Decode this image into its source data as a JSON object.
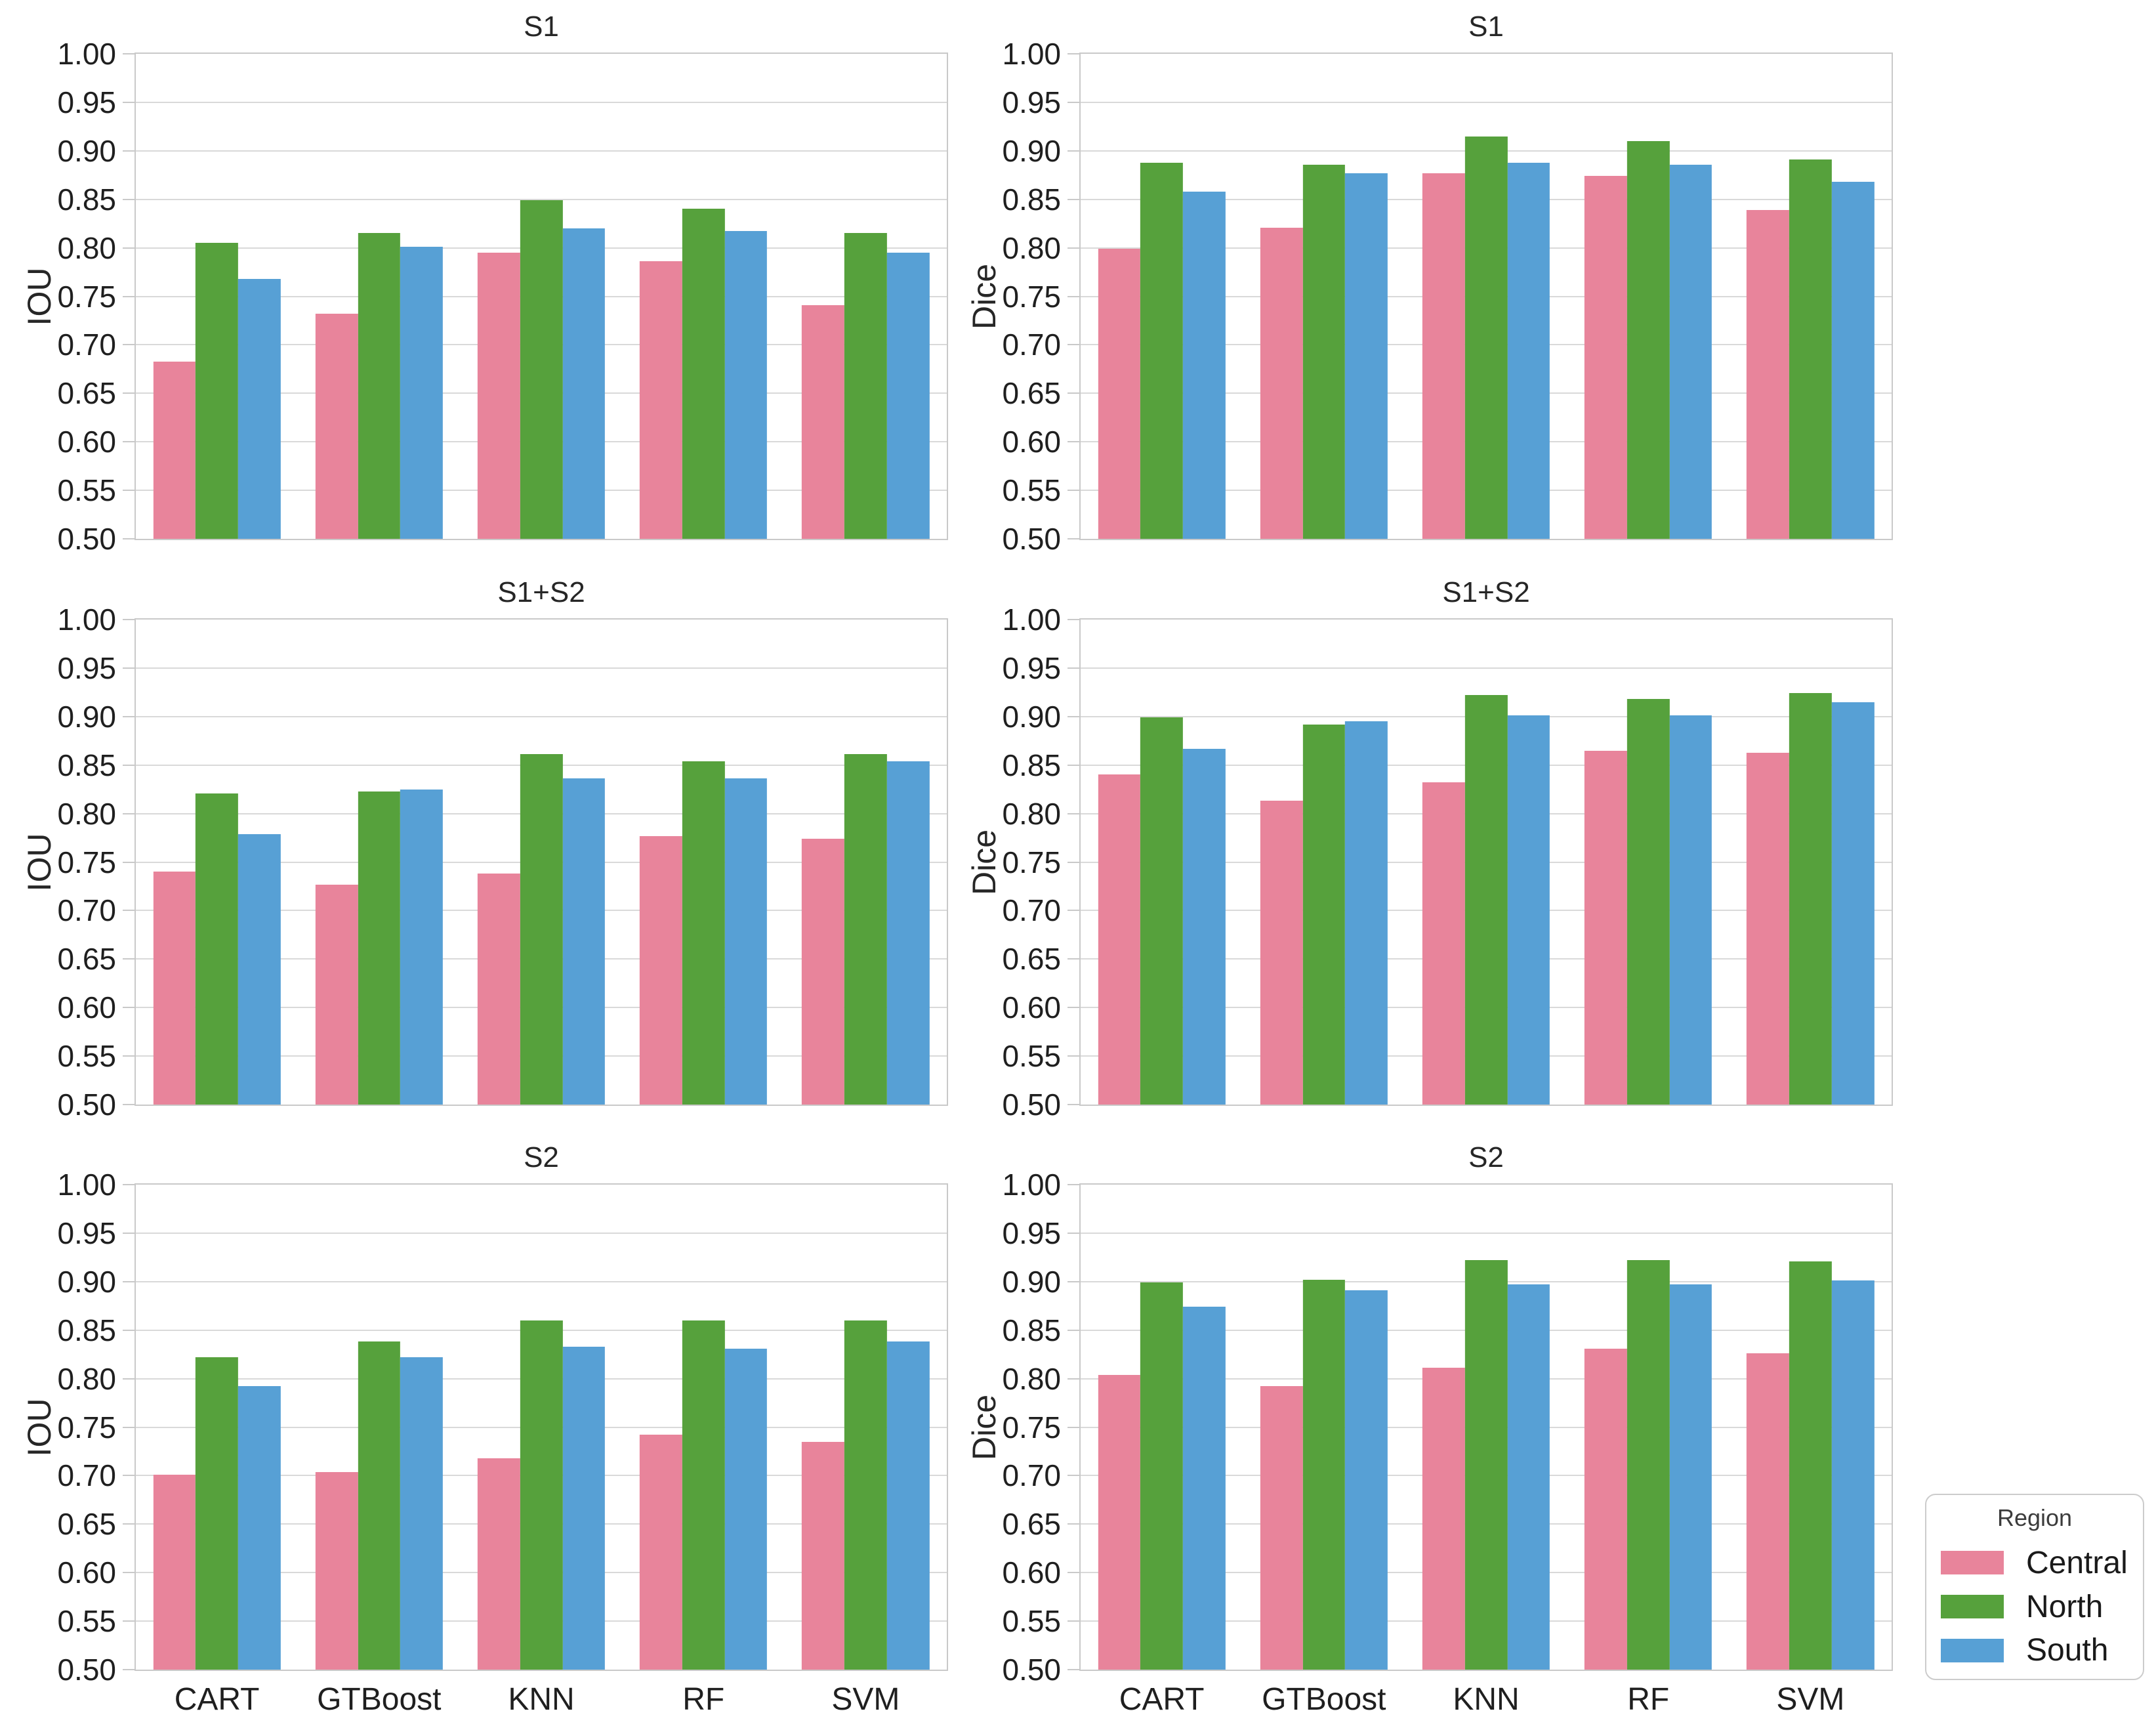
{
  "figure": {
    "background": "#ffffff",
    "gridline_color": "#d9d9d9",
    "spine_color": "#c9c9c9"
  },
  "legend": {
    "title": "Region",
    "items": [
      {
        "label": "Central",
        "color": "#e8849b"
      },
      {
        "label": "North",
        "color": "#56a13c"
      },
      {
        "label": "South",
        "color": "#57a0d5"
      }
    ]
  },
  "y_axis_ticks": [
    "1.00",
    "0.95",
    "0.90",
    "0.85",
    "0.80",
    "0.75",
    "0.70",
    "0.65",
    "0.60",
    "0.55",
    "0.50"
  ],
  "chart_data": [
    {
      "type": "bar",
      "title": "S1",
      "ylabel": "IOU",
      "ylim": [
        0.5,
        1.0
      ],
      "grid": true,
      "categories": [
        "CART",
        "GTBoost",
        "KNN",
        "RF",
        "SVM"
      ],
      "show_xticklabels": false,
      "series": [
        {
          "name": "Central",
          "values": [
            0.683,
            0.732,
            0.795,
            0.786,
            0.741
          ]
        },
        {
          "name": "North",
          "values": [
            0.805,
            0.815,
            0.849,
            0.84,
            0.815
          ]
        },
        {
          "name": "South",
          "values": [
            0.768,
            0.801,
            0.82,
            0.817,
            0.795
          ]
        }
      ]
    },
    {
      "type": "bar",
      "title": "S1",
      "ylabel": "Dice",
      "ylim": [
        0.5,
        1.0
      ],
      "grid": true,
      "categories": [
        "CART",
        "GTBoost",
        "KNN",
        "RF",
        "SVM"
      ],
      "show_xticklabels": false,
      "series": [
        {
          "name": "Central",
          "values": [
            0.799,
            0.821,
            0.877,
            0.874,
            0.839
          ]
        },
        {
          "name": "North",
          "values": [
            0.888,
            0.886,
            0.915,
            0.91,
            0.891
          ]
        },
        {
          "name": "South",
          "values": [
            0.858,
            0.877,
            0.888,
            0.886,
            0.868
          ]
        }
      ]
    },
    {
      "type": "bar",
      "title": "S1+S2",
      "ylabel": "IOU",
      "ylim": [
        0.5,
        1.0
      ],
      "grid": true,
      "categories": [
        "CART",
        "GTBoost",
        "KNN",
        "RF",
        "SVM"
      ],
      "show_xticklabels": false,
      "series": [
        {
          "name": "Central",
          "values": [
            0.74,
            0.727,
            0.738,
            0.777,
            0.774
          ]
        },
        {
          "name": "North",
          "values": [
            0.821,
            0.823,
            0.861,
            0.854,
            0.861
          ]
        },
        {
          "name": "South",
          "values": [
            0.779,
            0.825,
            0.836,
            0.836,
            0.854
          ]
        }
      ]
    },
    {
      "type": "bar",
      "title": "S1+S2",
      "ylabel": "Dice",
      "ylim": [
        0.5,
        1.0
      ],
      "grid": true,
      "categories": [
        "CART",
        "GTBoost",
        "KNN",
        "RF",
        "SVM"
      ],
      "show_xticklabels": false,
      "series": [
        {
          "name": "Central",
          "values": [
            0.84,
            0.813,
            0.832,
            0.865,
            0.863
          ]
        },
        {
          "name": "North",
          "values": [
            0.899,
            0.892,
            0.922,
            0.918,
            0.924
          ]
        },
        {
          "name": "South",
          "values": [
            0.867,
            0.895,
            0.901,
            0.901,
            0.915
          ]
        }
      ]
    },
    {
      "type": "bar",
      "title": "S2",
      "ylabel": "IOU",
      "ylim": [
        0.5,
        1.0
      ],
      "grid": true,
      "categories": [
        "CART",
        "GTBoost",
        "KNN",
        "RF",
        "SVM"
      ],
      "show_xticklabels": true,
      "series": [
        {
          "name": "Central",
          "values": [
            0.701,
            0.704,
            0.718,
            0.742,
            0.735
          ]
        },
        {
          "name": "North",
          "values": [
            0.822,
            0.838,
            0.86,
            0.86,
            0.86
          ]
        },
        {
          "name": "South",
          "values": [
            0.792,
            0.822,
            0.833,
            0.831,
            0.838
          ]
        }
      ]
    },
    {
      "type": "bar",
      "title": "S2",
      "ylabel": "Dice",
      "ylim": [
        0.5,
        1.0
      ],
      "grid": true,
      "categories": [
        "CART",
        "GTBoost",
        "KNN",
        "RF",
        "SVM"
      ],
      "show_xticklabels": true,
      "series": [
        {
          "name": "Central",
          "values": [
            0.804,
            0.792,
            0.811,
            0.831,
            0.826
          ]
        },
        {
          "name": "North",
          "values": [
            0.899,
            0.902,
            0.922,
            0.922,
            0.921
          ]
        },
        {
          "name": "South",
          "values": [
            0.874,
            0.891,
            0.897,
            0.897,
            0.901
          ]
        }
      ]
    }
  ]
}
